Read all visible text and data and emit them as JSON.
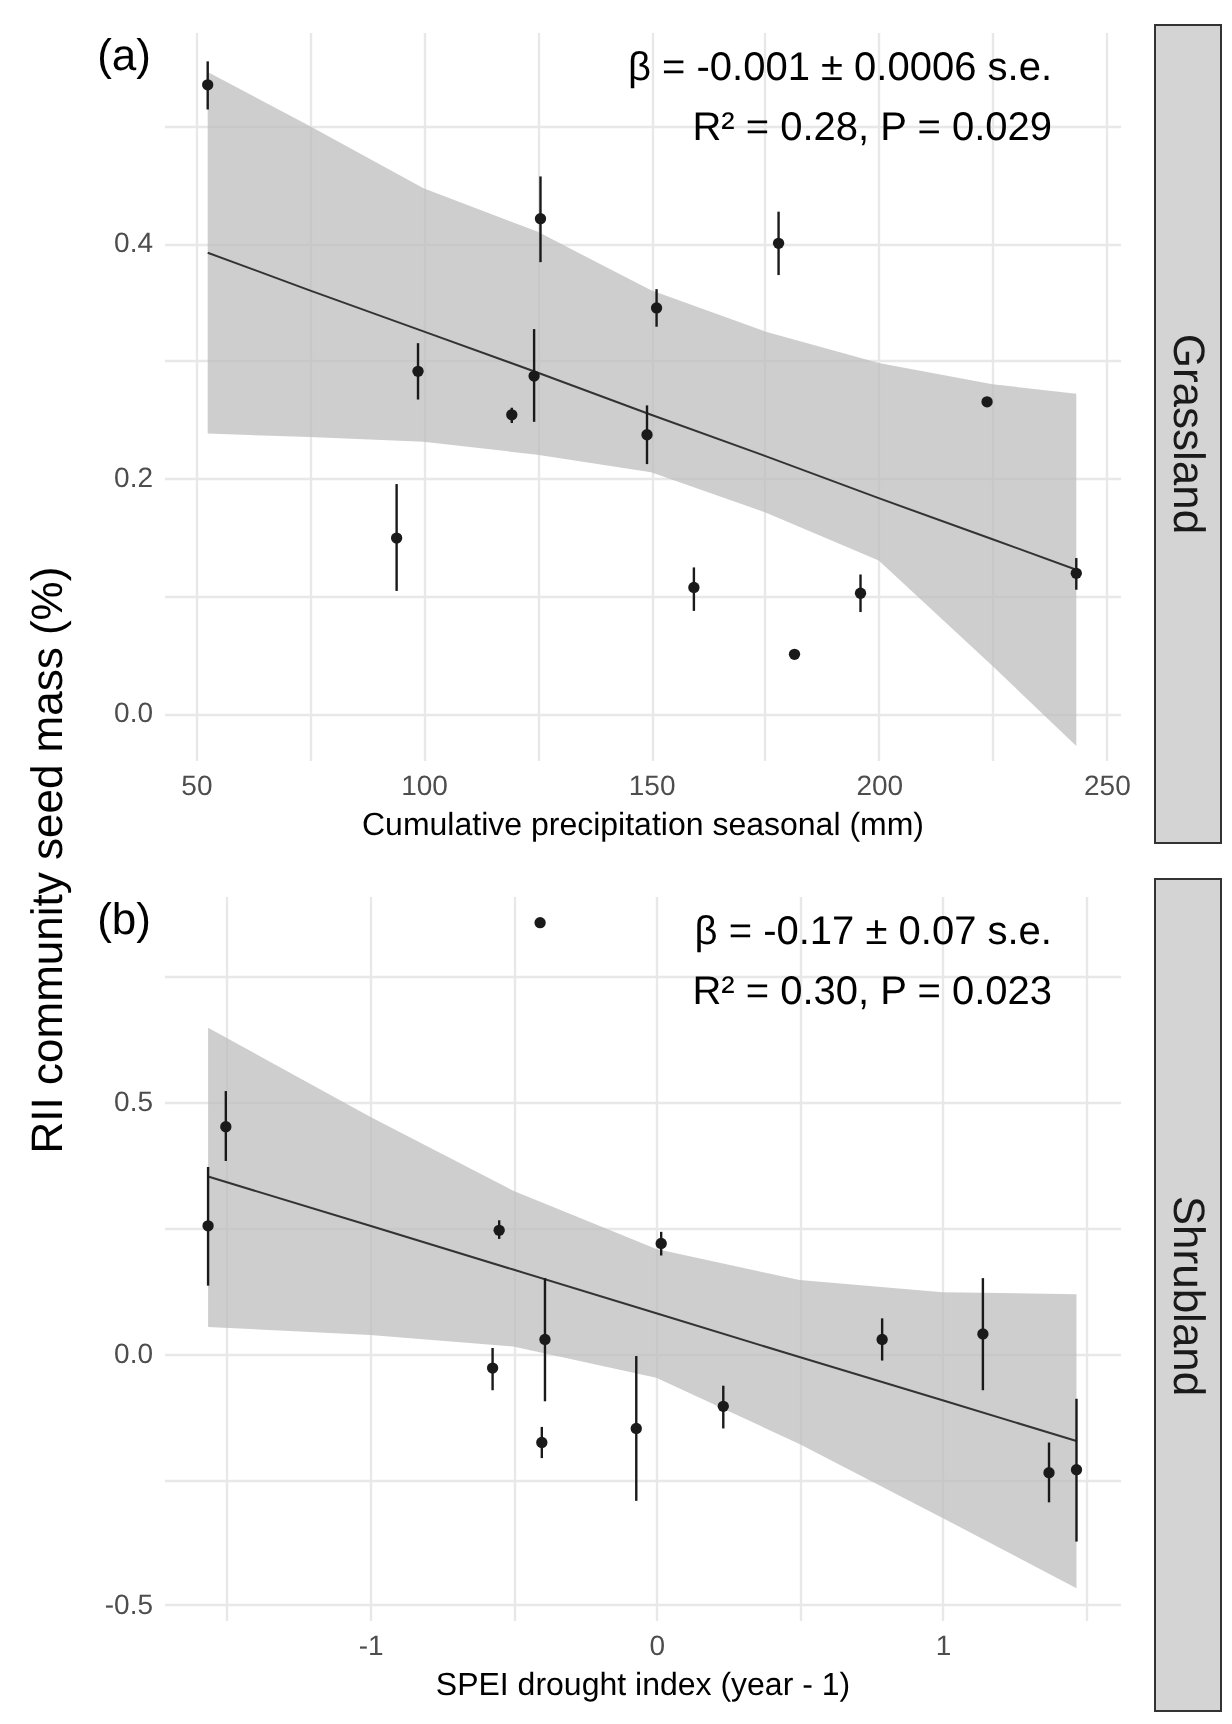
{
  "chart_data": [
    {
      "type": "scatter",
      "title": "(a)",
      "xlabel": "Cumulative precipitation seasonal (mm)",
      "ylabel": "RII community seed mass (%)",
      "annotations": [
        "β = -0.001 ± 0.0006 s.e.",
        "R² = 0.28, P = 0.029",
        "Grassland"
      ],
      "xlim": [
        43,
        253
      ],
      "ylim": [
        -0.04,
        0.58
      ],
      "xticks": [
        50,
        {
          "value": 75,
          "label": null
        },
        100,
        {
          "value": 125,
          "label": null
        },
        150,
        {
          "value": 175,
          "label": null
        },
        200,
        {
          "value": 225,
          "label": null
        },
        250
      ],
      "yticks": [
        {
          "value": 0,
          "label": "0.0"
        },
        {
          "value": 0.1,
          "label": null
        },
        {
          "value": 0.2,
          "label": "0.2"
        },
        {
          "value": 0.3,
          "label": null
        },
        {
          "value": 0.4,
          "label": "0.4"
        },
        {
          "value": 0.5,
          "label": null
        }
      ],
      "grid": true,
      "series": [
        {
          "type": "scatter",
          "marker": "circle",
          "color": "#1a1a1a",
          "x": [
            52.6,
            94.1,
            98.8,
            119.4,
            124.3,
            125.7,
            149.1,
            151.2,
            159.4,
            178.0,
            181.5,
            196.0,
            223.8,
            243.4
          ],
          "values": [
            0.535,
            0.149,
            0.291,
            0.254,
            0.287,
            0.421,
            0.237,
            0.345,
            0.107,
            0.4,
            0.05,
            0.102,
            0.265,
            0.119
          ],
          "errors": [
            [
              0.514,
              0.555
            ],
            [
              0.104,
              0.195
            ],
            [
              0.267,
              0.315
            ],
            [
              0.247,
              0.26
            ],
            [
              0.248,
              0.327
            ],
            [
              0.384,
              0.457
            ],
            [
              0.212,
              0.262
            ],
            [
              0.329,
              0.361
            ],
            [
              0.087,
              0.124
            ],
            [
              0.373,
              0.427
            ],
            null,
            [
              0.086,
              0.118
            ],
            null,
            [
              0.105,
              0.132
            ]
          ]
        },
        {
          "type": "line",
          "color": "#333333",
          "x": [
            52.6,
            75,
            100,
            125,
            150,
            175,
            200,
            225,
            243.4
          ],
          "values": [
            0.392,
            0.36,
            0.325,
            0.29,
            0.254,
            0.219,
            0.183,
            0.148,
            0.122
          ],
          "lower": [
            0.238,
            0.235,
            0.231,
            0.22,
            0.205,
            0.171,
            0.13,
            0.04,
            -0.028
          ],
          "upper": [
            0.546,
            0.5,
            0.447,
            0.41,
            0.36,
            0.325,
            0.298,
            0.28,
            0.272
          ]
        }
      ]
    },
    {
      "type": "scatter",
      "title": "(b)",
      "xlabel": "SPEI drought index (year - 1)",
      "annotations": [
        "β = -0.17 ± 0.07 s.e.",
        "R² = 0.30, P = 0.023",
        "Shrubland"
      ],
      "xlim": [
        -1.72,
        1.62
      ],
      "ylim": [
        -0.53,
        0.91
      ],
      "xticks": [
        {
          "value": -1.5,
          "label": null
        },
        -1,
        {
          "value": -0.5,
          "label": null
        },
        0,
        {
          "value": 0.5,
          "label": null
        },
        1,
        {
          "value": 1.5,
          "label": null
        }
      ],
      "yticks": [
        {
          "value": -0.5,
          "label": "-0.5"
        },
        {
          "value": -0.25,
          "label": null
        },
        {
          "value": 0,
          "label": "0.0"
        },
        {
          "value": 0.25,
          "label": null
        },
        {
          "value": 0.5,
          "label": "0.5"
        },
        {
          "value": 0.75,
          "label": null
        }
      ],
      "grid": true,
      "series": [
        {
          "type": "scatter",
          "marker": "circle",
          "color": "#1a1a1a",
          "x": [
            -1.566,
            -1.504,
            -0.572,
            -0.549,
            -0.4,
            -0.389,
            -0.07,
            0.017,
            0.234,
            0.789,
            1.141,
            1.372,
            1.468,
            -0.406
          ],
          "values": [
            0.254,
            0.451,
            -0.029,
            0.245,
            -0.177,
            0.028,
            -0.149,
            0.219,
            -0.105,
            0.028,
            0.039,
            -0.237,
            -0.231,
            0.857
          ],
          "errors": [
            [
              0.135,
              0.371
            ],
            [
              0.383,
              0.522
            ],
            [
              -0.073,
              0.011
            ],
            [
              0.228,
              0.265
            ],
            [
              -0.208,
              -0.146
            ],
            [
              -0.095,
              0.15
            ],
            [
              -0.293,
              -0.005
            ],
            [
              0.195,
              0.242
            ],
            [
              -0.149,
              -0.064
            ],
            [
              -0.014,
              0.07
            ],
            [
              -0.073,
              0.15
            ],
            [
              -0.296,
              -0.177
            ],
            [
              -0.374,
              -0.09
            ],
            null
          ]
        },
        {
          "type": "line",
          "color": "#333333",
          "x": [
            -1.566,
            -1,
            -0.5,
            0,
            0.5,
            1,
            1.468
          ],
          "values": [
            0.352,
            0.254,
            0.167,
            0.08,
            -0.007,
            -0.093,
            -0.174
          ],
          "lower": [
            0.053,
            0.037,
            0.014,
            -0.048,
            -0.18,
            -0.327,
            -0.467
          ],
          "upper": [
            0.648,
            0.471,
            0.324,
            0.208,
            0.146,
            0.122,
            0.118
          ]
        }
      ]
    }
  ]
}
